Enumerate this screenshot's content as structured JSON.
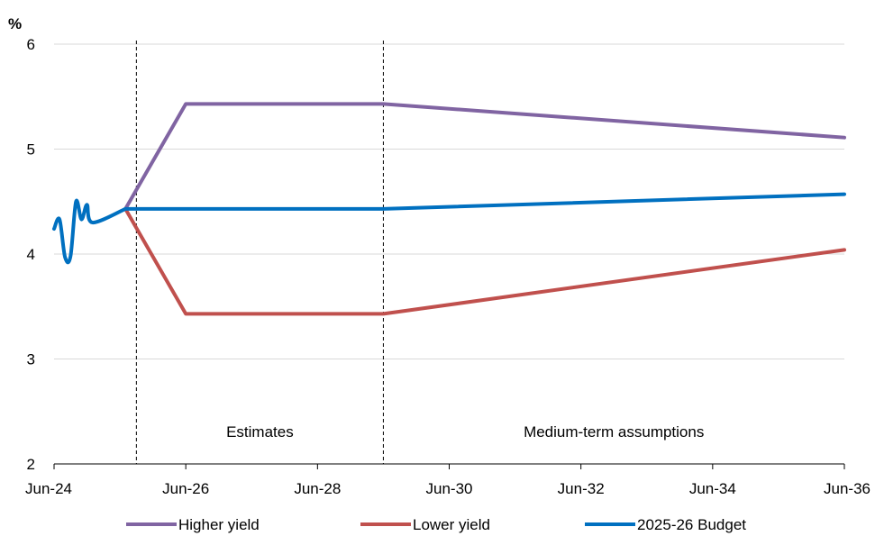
{
  "chart_data": {
    "type": "line",
    "title": "",
    "ylabel": "%",
    "xlabel": "",
    "ylim": [
      2,
      6
    ],
    "y_ticks": [
      2,
      3,
      4,
      5,
      6
    ],
    "x_range": [
      "Jun-24",
      "Jun-36"
    ],
    "x_ticks": [
      "Jun-24",
      "Jun-26",
      "Jun-28",
      "Jun-30",
      "Jun-32",
      "Jun-34",
      "Jun-36"
    ],
    "grid": "horizontal",
    "legend_position": "bottom",
    "period_markers": [
      {
        "x": "Sep-25",
        "style": "dashed"
      },
      {
        "x": "Jun-29",
        "style": "dashed"
      }
    ],
    "period_labels": [
      {
        "text": "Estimates",
        "from": "Sep-25",
        "to": "Jun-29"
      },
      {
        "text": "Medium-term assumptions",
        "from": "Jun-29",
        "to": "Jun-36"
      }
    ],
    "series": [
      {
        "name": "Higher yield",
        "color": "#8064a2",
        "points": [
          [
            "Jul-25",
            4.43
          ],
          [
            "Jun-26",
            5.43
          ],
          [
            "Jun-29",
            5.43
          ],
          [
            "Jun-36",
            5.11
          ]
        ]
      },
      {
        "name": "Lower yield",
        "color": "#c0504d",
        "points": [
          [
            "Jul-25",
            4.43
          ],
          [
            "Jun-26",
            3.43
          ],
          [
            "Jun-29",
            3.43
          ],
          [
            "Jun-36",
            4.04
          ]
        ]
      },
      {
        "name": "2025-26 Budget",
        "color": "#0070c0",
        "points": [
          [
            "Jun-24",
            4.24
          ],
          [
            "Jul-24",
            4.33
          ],
          [
            "Aug-24",
            3.97
          ],
          [
            "Sep-24",
            3.98
          ],
          [
            "Oct-24",
            4.5
          ],
          [
            "Nov-24",
            4.33
          ],
          [
            "Dec-24",
            4.47
          ],
          [
            "Jan-25",
            4.3
          ],
          [
            "Jul-25",
            4.43
          ],
          [
            "Jun-26",
            4.43
          ],
          [
            "Jun-29",
            4.43
          ],
          [
            "Jun-36",
            4.57
          ]
        ]
      }
    ]
  }
}
